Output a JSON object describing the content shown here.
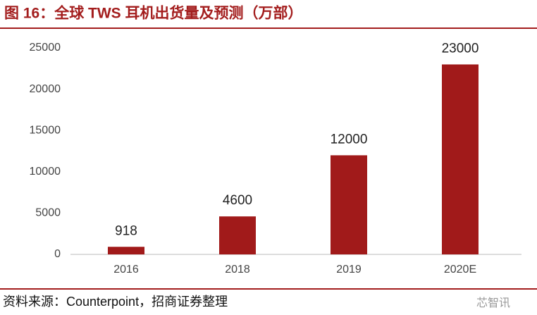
{
  "chart_data": {
    "type": "bar",
    "title": "图 16：全球 TWS 耳机出货量及预测（万部）",
    "categories": [
      "2016",
      "2018",
      "2019",
      "2020E"
    ],
    "values": [
      918,
      4600,
      12000,
      23000
    ],
    "color": "#a11a1a",
    "ylim": [
      0,
      25000
    ],
    "yticks": [
      0,
      5000,
      10000,
      15000,
      20000,
      25000
    ],
    "grid": false,
    "source": "资料来源：Counterpoint，招商证券整理",
    "watermark": "芯智讯"
  }
}
